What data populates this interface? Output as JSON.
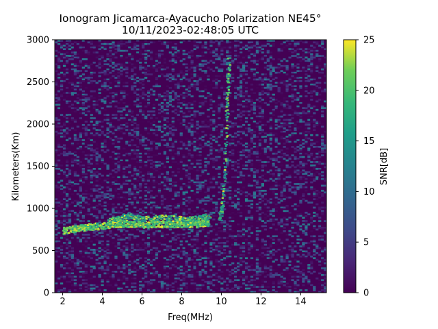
{
  "chart_data": {
    "type": "heatmap",
    "title_line1": "Ionogram Jicamarca-Ayacucho Polarization NE45°",
    "title_line2": "10/11/2023-02:48:05 UTC",
    "xlabel": "Freq(MHz)",
    "ylabel": "Kilometers(Km)",
    "xlim": [
      1.6,
      15.3
    ],
    "ylim": [
      0,
      3000
    ],
    "xticks": [
      2,
      4,
      6,
      8,
      10,
      12,
      14
    ],
    "yticks": [
      0,
      500,
      1000,
      1500,
      2000,
      2500,
      3000
    ],
    "colorbar": {
      "label": "SNR[dB]",
      "range": [
        0,
        25
      ],
      "ticks": [
        0,
        5,
        10,
        15,
        20,
        25
      ],
      "colormap": "viridis"
    },
    "traces": [
      {
        "description": "main echo trace",
        "points": [
          [
            2.0,
            740
          ],
          [
            2.5,
            760
          ],
          [
            3.0,
            775
          ],
          [
            3.5,
            790
          ],
          [
            4.0,
            800
          ],
          [
            4.5,
            815
          ],
          [
            5.0,
            825
          ],
          [
            5.5,
            820
          ],
          [
            6.0,
            815
          ],
          [
            6.5,
            815
          ],
          [
            7.0,
            820
          ],
          [
            7.5,
            820
          ],
          [
            8.0,
            820
          ],
          [
            8.5,
            825
          ],
          [
            9.0,
            830
          ],
          [
            9.3,
            835
          ]
        ]
      },
      {
        "description": "upper trace segment",
        "points": [
          [
            4.3,
            850
          ],
          [
            4.8,
            890
          ],
          [
            5.2,
            920
          ],
          [
            5.6,
            900
          ],
          [
            6.0,
            880
          ],
          [
            6.5,
            890
          ],
          [
            7.0,
            900
          ],
          [
            7.5,
            895
          ],
          [
            8.0,
            880
          ],
          [
            8.5,
            880
          ],
          [
            9.0,
            900
          ],
          [
            9.4,
            920
          ]
        ]
      },
      {
        "description": "near-vertical trace at ~10.3 MHz",
        "points": [
          [
            9.9,
            850
          ],
          [
            10.0,
            1000
          ],
          [
            10.1,
            1300
          ],
          [
            10.2,
            1750
          ],
          [
            10.25,
            2200
          ],
          [
            10.3,
            2500
          ],
          [
            10.35,
            2800
          ]
        ]
      }
    ]
  }
}
